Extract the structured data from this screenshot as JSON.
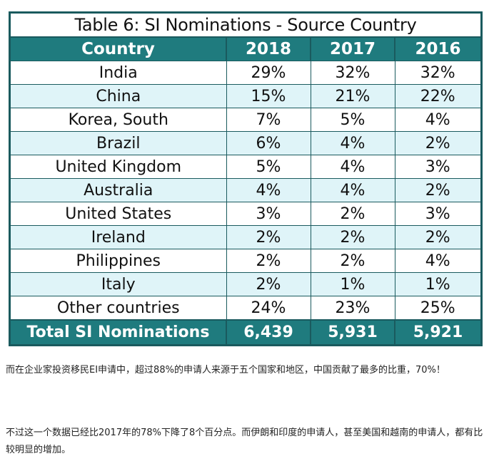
{
  "table": {
    "title": "Table 6: SI Nominations - Source Country",
    "headers": [
      "Country",
      "2018",
      "2017",
      "2016"
    ],
    "rows": [
      [
        "India",
        "29%",
        "32%",
        "32%"
      ],
      [
        "China",
        "15%",
        "21%",
        "22%"
      ],
      [
        "Korea, South",
        "7%",
        "5%",
        "4%"
      ],
      [
        "Brazil",
        "6%",
        "4%",
        "2%"
      ],
      [
        "United Kingdom",
        "5%",
        "4%",
        "3%"
      ],
      [
        "Australia",
        "4%",
        "4%",
        "2%"
      ],
      [
        "United States",
        "3%",
        "2%",
        "3%"
      ],
      [
        "Ireland",
        "2%",
        "2%",
        "2%"
      ],
      [
        "Philippines",
        "2%",
        "2%",
        "4%"
      ],
      [
        "Italy",
        "2%",
        "1%",
        "1%"
      ],
      [
        "Other countries",
        "24%",
        "23%",
        "25%"
      ]
    ],
    "total": [
      "Total SI Nominations",
      "6,439",
      "5,931",
      "5,921"
    ]
  },
  "paragraphs": {
    "p1": "而在企业家投资移民EI申请中，超过88%的申请人来源于五个国家和地区，中国贡献了最多的比重，70%！",
    "p2": "不过这一个数据已经比2017年的78%下降了8个百分点。而伊朗和印度的申请人，甚至美国和越南的申请人，都有比较明显的增加。"
  },
  "colors": {
    "header_bg": "#1f7b7e",
    "border": "#1a5a5e",
    "stripe": "#dff4f8"
  }
}
